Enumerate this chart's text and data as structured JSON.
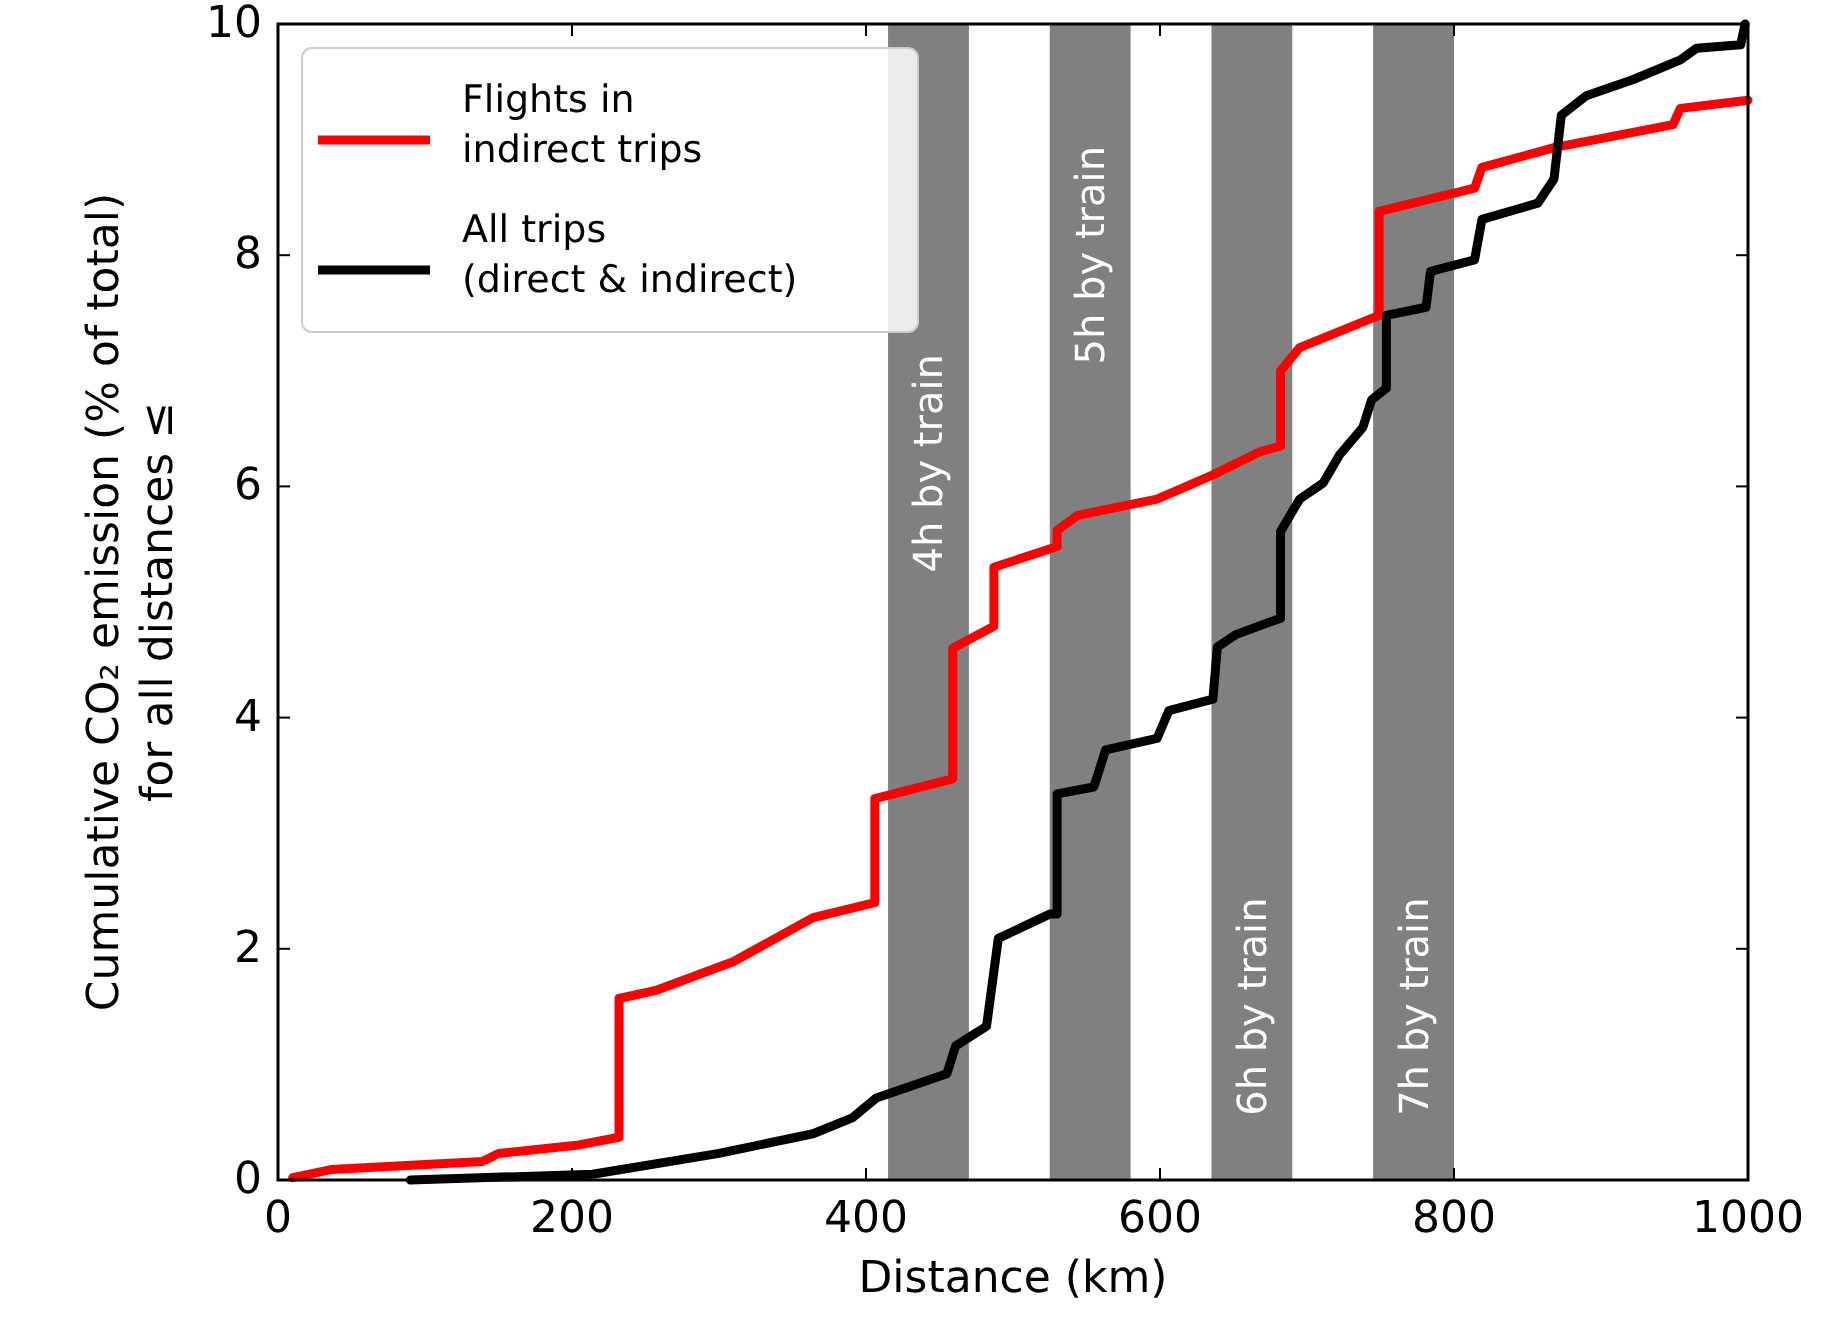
{
  "chart_data": {
    "type": "line",
    "xlabel": "Distance (km)",
    "ylabel": "Cumulative CO₂ emission (% of total)\nfor all distances ≤",
    "xlim": [
      0,
      1000
    ],
    "ylim": [
      0,
      10
    ],
    "xticks": [
      0,
      200,
      400,
      600,
      800,
      1000
    ],
    "yticks": [
      0,
      2,
      4,
      6,
      8,
      10
    ],
    "grid": false,
    "legend": "top left",
    "line_style": "solid",
    "marker": "none",
    "bands": [
      {
        "axis": "x",
        "from": 415,
        "to": 470,
        "label": "4h by train",
        "color": "#808080"
      },
      {
        "axis": "x",
        "from": 525,
        "to": 580,
        "label": "5h by train",
        "color": "#808080"
      },
      {
        "axis": "x",
        "from": 635,
        "to": 690,
        "label": "6h by train",
        "color": "#808080"
      },
      {
        "axis": "x",
        "from": 745,
        "to": 800,
        "label": "7h by train",
        "color": "#808080"
      }
    ],
    "series": [
      {
        "name": "Flights in\nindirect trips",
        "color": "#ff0000",
        "x": [
          10,
          36,
          139,
          150,
          203,
          232,
          232,
          257,
          310,
          364,
          406,
          406,
          459,
          459,
          487,
          487,
          530,
          530,
          544,
          598,
          636,
          668,
          682,
          682,
          695,
          749,
          749,
          814,
          819,
          868,
          949,
          954,
          1000
        ],
        "values": [
          0.02,
          0.09,
          0.16,
          0.23,
          0.3,
          0.37,
          1.57,
          1.64,
          1.89,
          2.27,
          2.4,
          3.3,
          3.47,
          4.6,
          4.79,
          5.3,
          5.48,
          5.62,
          5.75,
          5.89,
          6.1,
          6.3,
          6.35,
          7.0,
          7.2,
          7.48,
          8.38,
          8.58,
          8.76,
          8.93,
          9.13,
          9.27,
          9.34
        ]
      },
      {
        "name": "All trips\n(direct & indirect)",
        "color": "#000000",
        "x": [
          90,
          214,
          300,
          364,
          391,
          407,
          455,
          461,
          482,
          490,
          525,
          530,
          530,
          555,
          563,
          598,
          606,
          636,
          639,
          652,
          682,
          682,
          695,
          711,
          722,
          738,
          744,
          754,
          754,
          781,
          784,
          814,
          819,
          857,
          868,
          873,
          890,
          922,
          954,
          965,
          995,
          998
        ],
        "values": [
          0,
          0.05,
          0.23,
          0.4,
          0.54,
          0.71,
          0.92,
          1.16,
          1.33,
          2.09,
          2.3,
          2.3,
          3.34,
          3.4,
          3.72,
          3.82,
          4.06,
          4.16,
          4.61,
          4.72,
          4.86,
          5.61,
          5.89,
          6.03,
          6.27,
          6.51,
          6.75,
          6.85,
          7.48,
          7.55,
          7.86,
          7.96,
          8.31,
          8.45,
          8.66,
          9.21,
          9.38,
          9.52,
          9.69,
          9.79,
          9.82,
          10
        ]
      }
    ]
  }
}
